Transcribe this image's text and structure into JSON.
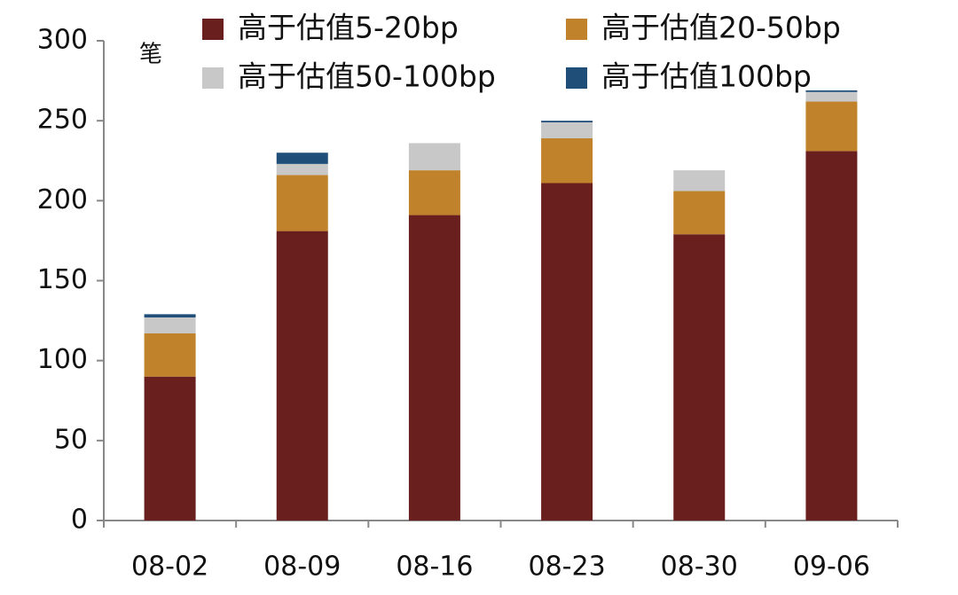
{
  "chart_data": {
    "type": "stacked_bar",
    "y_label": "笔",
    "categories": [
      "08-02",
      "08-09",
      "08-16",
      "08-23",
      "08-30",
      "09-06"
    ],
    "series": [
      {
        "name": "高于估值5-20bp",
        "color": "#6a1f1f",
        "values": [
          90,
          181,
          191,
          211,
          179,
          231
        ]
      },
      {
        "name": "高于估值20-50bp",
        "color": "#c0832b",
        "values": [
          27,
          35,
          28,
          28,
          27,
          31
        ]
      },
      {
        "name": "高于估值50-100bp",
        "color": "#c8c8c8",
        "values": [
          10,
          7,
          17,
          10,
          13,
          6
        ]
      },
      {
        "name": "高于估值100bp",
        "color": "#1f4e79",
        "values": [
          2,
          7,
          0,
          1,
          0,
          1
        ]
      }
    ],
    "ylim": [
      0,
      300
    ],
    "yticks": [
      0,
      50,
      100,
      150,
      200,
      250,
      300
    ]
  }
}
